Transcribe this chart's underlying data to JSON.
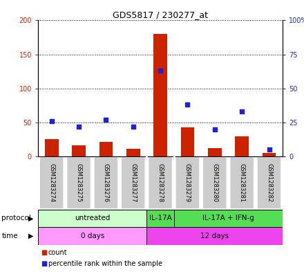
{
  "title": "GDS5817 / 230277_at",
  "samples": [
    "GSM1283274",
    "GSM1283275",
    "GSM1283276",
    "GSM1283277",
    "GSM1283278",
    "GSM1283279",
    "GSM1283280",
    "GSM1283281",
    "GSM1283282"
  ],
  "counts": [
    25,
    16,
    21,
    11,
    180,
    43,
    12,
    30,
    5
  ],
  "percentiles": [
    26,
    22,
    27,
    22,
    63,
    38,
    20,
    33,
    5
  ],
  "bar_color": "#cc2200",
  "dot_color": "#2222cc",
  "ylim_left": [
    0,
    200
  ],
  "ylim_right": [
    0,
    100
  ],
  "yticks_left": [
    0,
    50,
    100,
    150,
    200
  ],
  "ytick_labels_left": [
    "0",
    "50",
    "100",
    "150",
    "200"
  ],
  "yticks_right": [
    0,
    25,
    50,
    75,
    100
  ],
  "ytick_labels_right": [
    "0",
    "25",
    "50",
    "75",
    "100%"
  ],
  "background_color": "#ffffff",
  "sample_box_color": "#cccccc",
  "legend_count_color": "#cc2200",
  "legend_pct_color": "#2222cc",
  "proto_groups": [
    {
      "label": "untreated",
      "start": 0,
      "end": 4,
      "color": "#ccffcc"
    },
    {
      "label": "IL-17A",
      "start": 4,
      "end": 5,
      "color": "#55dd55"
    },
    {
      "label": "IL-17A + IFN-g",
      "start": 5,
      "end": 9,
      "color": "#55dd55"
    }
  ],
  "time_groups": [
    {
      "label": "0 days",
      "start": 0,
      "end": 4,
      "color": "#ff99ff"
    },
    {
      "label": "12 days",
      "start": 4,
      "end": 9,
      "color": "#ee44ee"
    }
  ]
}
